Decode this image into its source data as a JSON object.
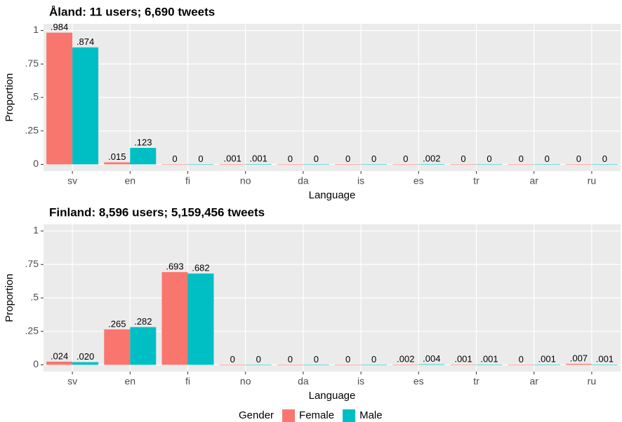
{
  "chart_data": [
    {
      "type": "bar",
      "title": "Åland: 11 users; 6,690 tweets",
      "xlabel": "Language",
      "ylabel": "Proportion",
      "categories": [
        "sv",
        "en",
        "fi",
        "no",
        "da",
        "is",
        "es",
        "tr",
        "ar",
        "ru"
      ],
      "series": [
        {
          "name": "Female",
          "color": "#F8766D",
          "values": [
            0.984,
            0.015,
            0,
            0.001,
            0,
            0,
            0,
            0,
            0,
            0
          ],
          "value_labels": [
            ".984",
            ".015",
            "0",
            ".001",
            "0",
            "0",
            "0",
            "0",
            "0",
            "0"
          ]
        },
        {
          "name": "Male",
          "color": "#00BFC4",
          "values": [
            0.874,
            0.123,
            0,
            0.001,
            0,
            0,
            0.002,
            0,
            0,
            0
          ],
          "value_labels": [
            ".874",
            ".123",
            "0",
            ".001",
            "0",
            "0",
            ".002",
            "0",
            "0",
            "0"
          ]
        }
      ],
      "ylim": [
        -0.05,
        1.05
      ],
      "yticks": [
        0,
        {
          "value": 0.25,
          "label": ".25"
        },
        {
          "value": 0.5,
          "label": ".5"
        },
        {
          "value": 0.75,
          "label": ".75"
        },
        1
      ],
      "grid": true,
      "legend_title": "Gender",
      "legend_position": "bottom"
    },
    {
      "type": "bar",
      "title": "Finland: 8,596 users; 5,159,456 tweets",
      "xlabel": "Language",
      "ylabel": "Proportion",
      "categories": [
        "sv",
        "en",
        "fi",
        "no",
        "da",
        "is",
        "es",
        "tr",
        "ar",
        "ru"
      ],
      "series": [
        {
          "name": "Female",
          "color": "#F8766D",
          "values": [
            0.024,
            0.265,
            0.693,
            0,
            0,
            0,
            0.002,
            0.001,
            0,
            0.007
          ],
          "value_labels": [
            ".024",
            ".265",
            ".693",
            "0",
            "0",
            "0",
            ".002",
            ".001",
            "0",
            ".007"
          ]
        },
        {
          "name": "Male",
          "color": "#00BFC4",
          "values": [
            0.02,
            0.282,
            0.682,
            0,
            0,
            0,
            0.004,
            0.001,
            0.001,
            0.001
          ],
          "value_labels": [
            ".020",
            ".282",
            ".682",
            "0",
            "0",
            "0",
            ".004",
            ".001",
            ".001",
            ".001"
          ]
        }
      ],
      "ylim": [
        -0.05,
        1.05
      ],
      "yticks": [
        0,
        {
          "value": 0.25,
          "label": ".25"
        },
        {
          "value": 0.5,
          "label": ".5"
        },
        {
          "value": 0.75,
          "label": ".75"
        },
        1
      ],
      "grid": true
    }
  ]
}
